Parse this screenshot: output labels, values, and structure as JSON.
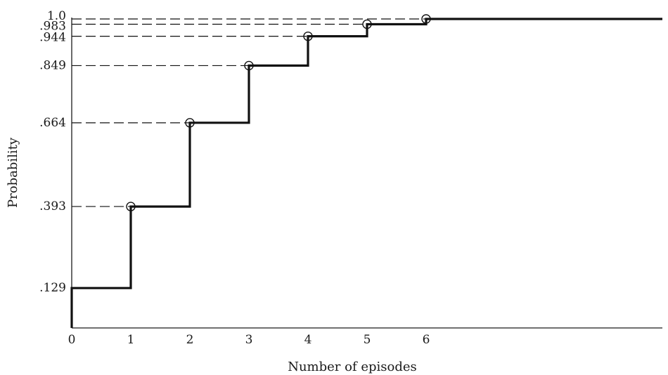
{
  "chart_data": {
    "type": "line",
    "step": true,
    "title": "",
    "xlabel": "Number of episodes",
    "ylabel": "Probability",
    "xlim": [
      0,
      10
    ],
    "ylim": [
      0,
      1.0
    ],
    "x_ticks": [
      0,
      1,
      2,
      3,
      4,
      5,
      6
    ],
    "x_tick_labels": [
      "0",
      "1",
      "2",
      "3",
      "4",
      "5",
      "6"
    ],
    "y_ticks": [
      0.129,
      0.393,
      0.664,
      0.849,
      0.944,
      0.983,
      1.0
    ],
    "y_tick_labels": [
      ".129",
      ".393",
      ".664",
      ".849",
      ".944",
      ".983",
      "1.0"
    ],
    "series": [
      {
        "x": [
          0,
          1,
          2,
          3,
          4,
          5,
          6
        ],
        "y": [
          0.129,
          0.393,
          0.664,
          0.849,
          0.944,
          0.983,
          1.0
        ],
        "marked_points": [
          1,
          2,
          3,
          4,
          5,
          6
        ]
      }
    ],
    "reference_lines": "dashed",
    "grid": false,
    "colors": {
      "line": "#111111",
      "axis": "#1a1a1a"
    }
  }
}
